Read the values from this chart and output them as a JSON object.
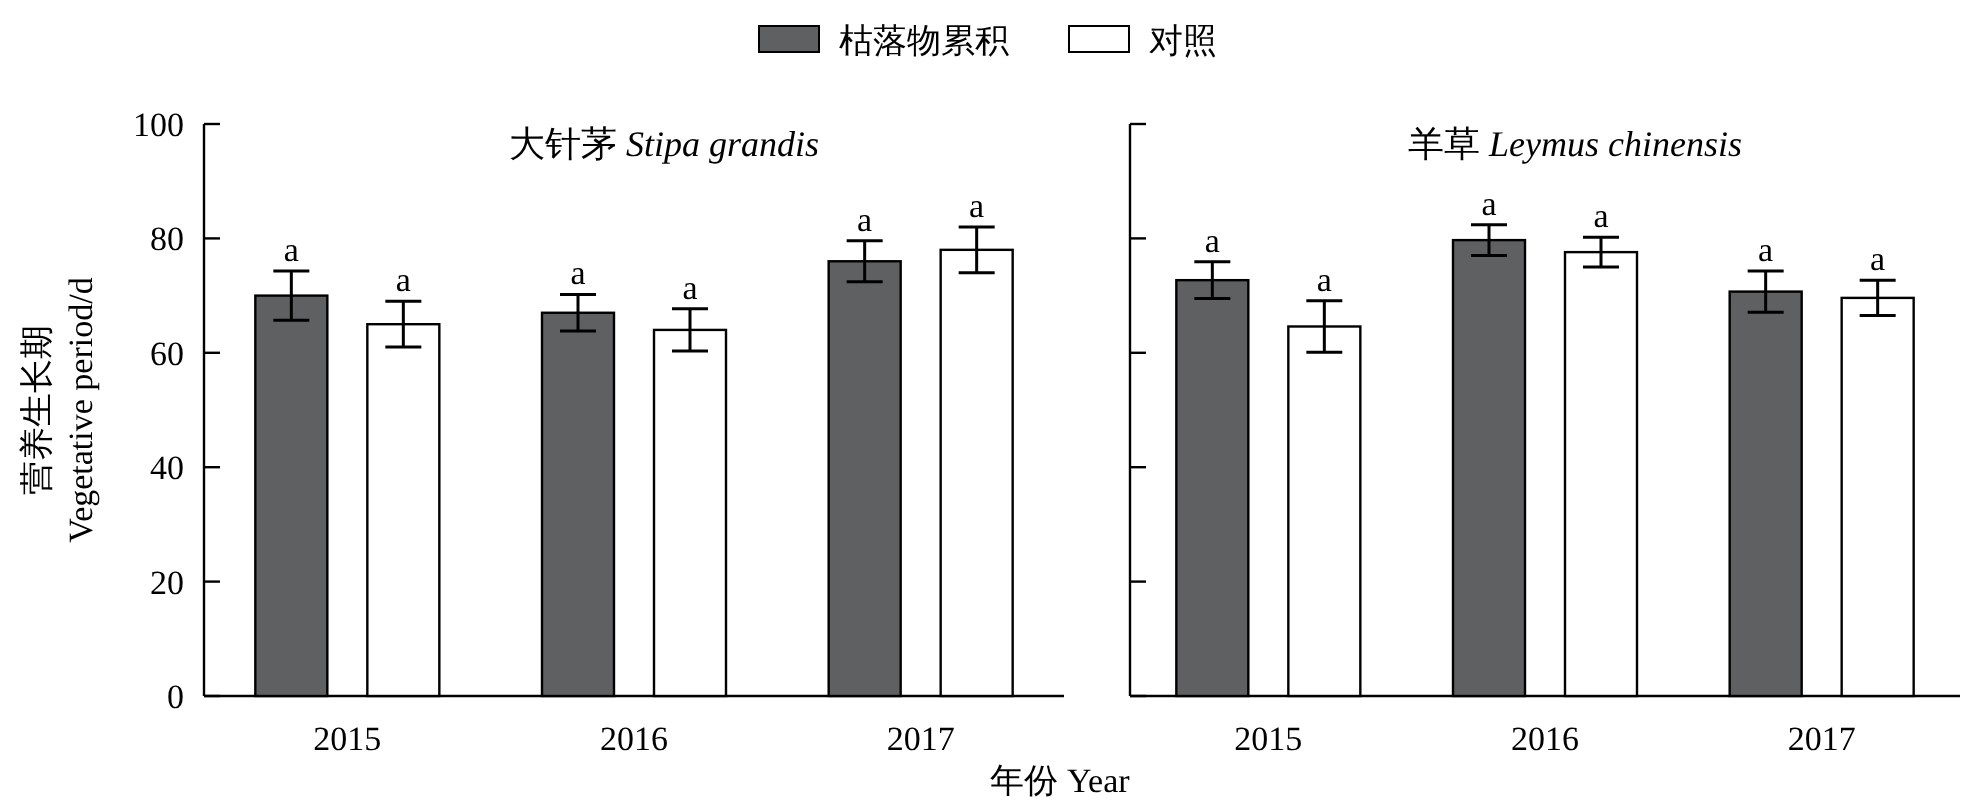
{
  "chart_data": [
    {
      "type": "bar",
      "title": "大针茅 Stipa grandis",
      "ylabel": "营养生长期 Vegetative period/d",
      "xlabel": "年份 Year",
      "legend": "top",
      "categories": [
        "2015",
        "2016",
        "2017"
      ],
      "ylim": [
        0,
        100
      ],
      "yticks": [
        0,
        20,
        40,
        60,
        80,
        100
      ],
      "series": [
        {
          "name": "枯落物累积",
          "color": "#5f6062",
          "values": [
            70,
            67,
            76
          ],
          "errors": [
            4.3,
            3.2,
            3.6
          ],
          "value_labels": [
            "a",
            "a",
            "a"
          ]
        },
        {
          "name": "对照",
          "color": "#ffffff",
          "values": [
            65,
            64,
            78
          ],
          "errors": [
            4,
            3.7,
            4
          ],
          "value_labels": [
            "a",
            "a",
            "a"
          ]
        }
      ]
    },
    {
      "type": "bar",
      "title": "羊草 Leymus chinensis",
      "tick_labels": "x",
      "categories": [
        "2015",
        "2016",
        "2017"
      ],
      "ylim": [
        0,
        100
      ],
      "yticks": [
        0,
        20,
        40,
        60,
        80,
        100
      ],
      "series": [
        {
          "color": "#5f6062",
          "values": [
            72.7,
            79.7,
            70.7
          ],
          "errors": [
            3.2,
            2.7,
            3.6
          ],
          "value_labels": [
            "a",
            "a",
            "a"
          ]
        },
        {
          "color": "#ffffff",
          "values": [
            64.6,
            77.6,
            69.6
          ],
          "errors": [
            4.5,
            2.6,
            3.1
          ],
          "value_labels": [
            "a",
            "a",
            "a"
          ]
        }
      ]
    }
  ]
}
